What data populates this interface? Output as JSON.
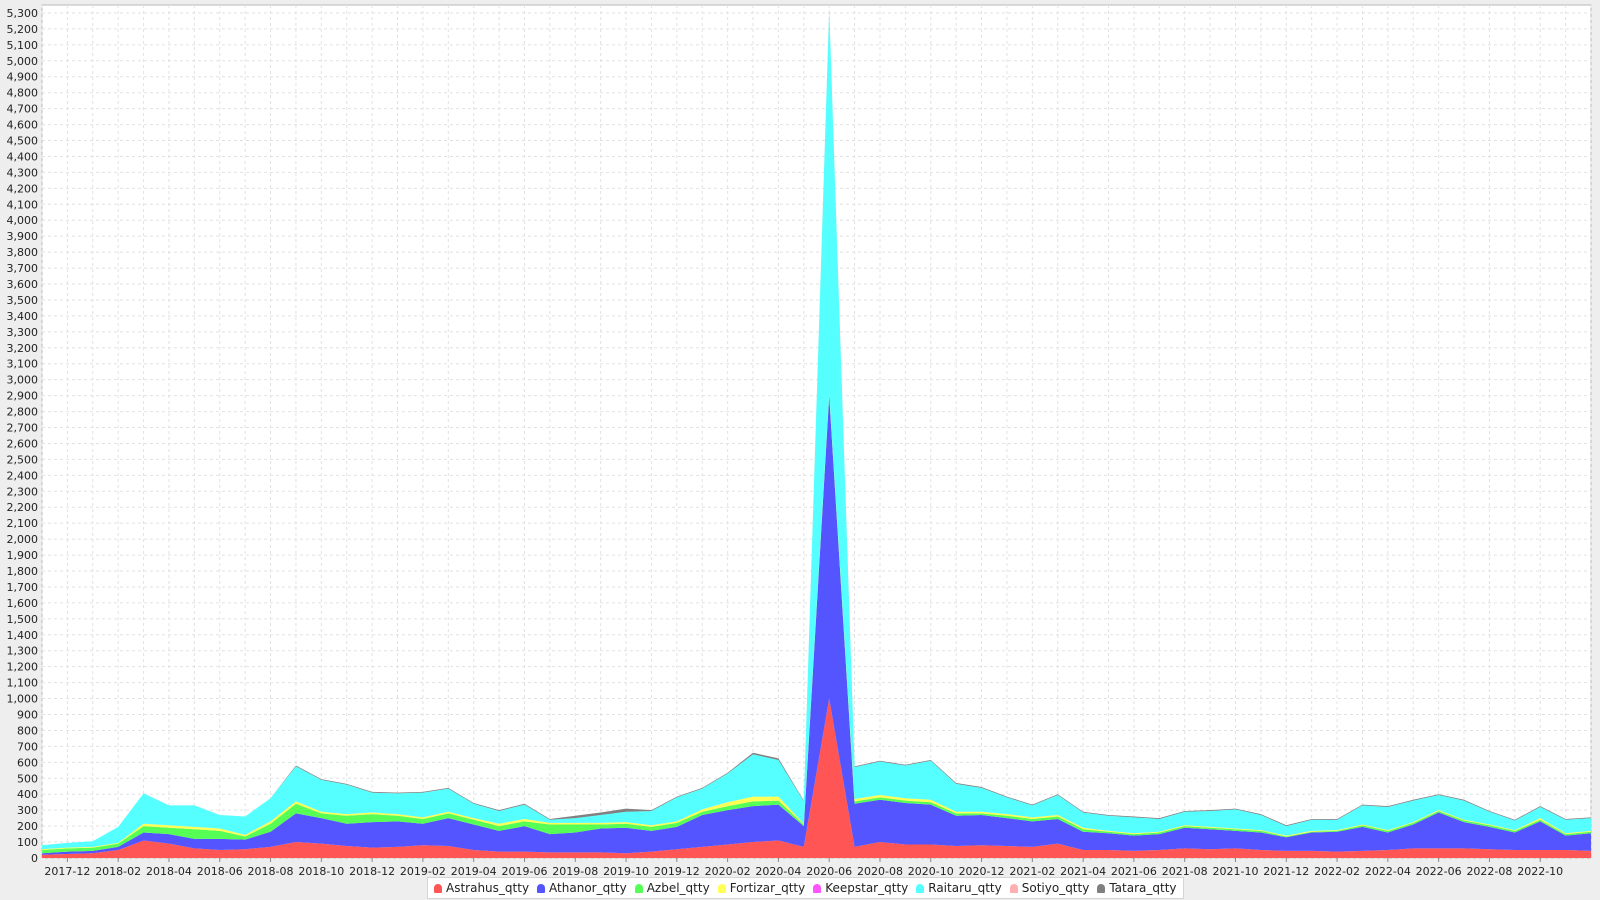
{
  "chart_data": {
    "type": "area",
    "stacked": true,
    "grid": true,
    "legend_position": "bottom",
    "ylim": [
      0,
      5350
    ],
    "y_ticks": [
      0,
      100,
      200,
      300,
      400,
      500,
      600,
      700,
      800,
      900,
      1000,
      1100,
      1200,
      1300,
      1400,
      1500,
      1600,
      1700,
      1800,
      1900,
      2000,
      2100,
      2200,
      2300,
      2400,
      2500,
      2600,
      2700,
      2800,
      2900,
      3000,
      3100,
      3200,
      3300,
      3400,
      3500,
      3600,
      3700,
      3800,
      3900,
      4000,
      4100,
      4200,
      4300,
      4400,
      4500,
      4600,
      4700,
      4800,
      4900,
      5000,
      5100,
      5200,
      5300
    ],
    "y_tick_labels": [
      "0",
      "100",
      "200",
      "300",
      "400",
      "500",
      "600",
      "700",
      "800",
      "900",
      "1,000",
      "1,100",
      "1,200",
      "1,300",
      "1,400",
      "1,500",
      "1,600",
      "1,700",
      "1,800",
      "1,900",
      "2,000",
      "2,100",
      "2,200",
      "2,300",
      "2,400",
      "2,500",
      "2,600",
      "2,700",
      "2,800",
      "2,900",
      "3,000",
      "3,100",
      "3,200",
      "3,300",
      "3,400",
      "3,500",
      "3,600",
      "3,700",
      "3,800",
      "3,900",
      "4,000",
      "4,100",
      "4,200",
      "4,300",
      "4,400",
      "4,500",
      "4,600",
      "4,700",
      "4,800",
      "4,900",
      "5,000",
      "5,100",
      "5,200",
      "5,300"
    ],
    "x": [
      "2017-11",
      "2017-12",
      "2018-01",
      "2018-02",
      "2018-03",
      "2018-04",
      "2018-05",
      "2018-06",
      "2018-07",
      "2018-08",
      "2018-09",
      "2018-10",
      "2018-11",
      "2018-12",
      "2019-01",
      "2019-02",
      "2019-03",
      "2019-04",
      "2019-05",
      "2019-06",
      "2019-07",
      "2019-08",
      "2019-09",
      "2019-10",
      "2019-11",
      "2019-12",
      "2020-01",
      "2020-02",
      "2020-03",
      "2020-04",
      "2020-05",
      "2020-06",
      "2020-07",
      "2020-08",
      "2020-09",
      "2020-10",
      "2020-11",
      "2020-12",
      "2021-01",
      "2021-02",
      "2021-03",
      "2021-04",
      "2021-05",
      "2021-06",
      "2021-07",
      "2021-08",
      "2021-09",
      "2021-10",
      "2021-11",
      "2021-12",
      "2022-01",
      "2022-02",
      "2022-03",
      "2022-04",
      "2022-05",
      "2022-06",
      "2022-07",
      "2022-08",
      "2022-09",
      "2022-10",
      "2022-11",
      "2022-12"
    ],
    "x_tick_labels": [
      "2017-12",
      "2018-02",
      "2018-04",
      "2018-06",
      "2018-08",
      "2018-10",
      "2018-12",
      "2019-02",
      "2019-04",
      "2019-06",
      "2019-08",
      "2019-10",
      "2019-12",
      "2020-02",
      "2020-04",
      "2020-06",
      "2020-08",
      "2020-10",
      "2020-12",
      "2021-02",
      "2021-04",
      "2021-06",
      "2021-08",
      "2021-10",
      "2021-12",
      "2022-02",
      "2022-04",
      "2022-06",
      "2022-08",
      "2022-10"
    ],
    "series": [
      {
        "name": "Astrahus_qtty",
        "color": "#ff5555",
        "values": [
          20,
          25,
          30,
          50,
          110,
          90,
          60,
          50,
          55,
          70,
          100,
          90,
          75,
          65,
          70,
          80,
          75,
          50,
          40,
          40,
          35,
          35,
          35,
          30,
          40,
          55,
          70,
          85,
          100,
          110,
          70,
          1000,
          70,
          100,
          85,
          85,
          75,
          80,
          75,
          70,
          90,
          50,
          50,
          45,
          50,
          60,
          55,
          60,
          50,
          45,
          45,
          40,
          45,
          50,
          60,
          60,
          60,
          55,
          50,
          50,
          50,
          45
        ]
      },
      {
        "name": "Athanor_qtty",
        "color": "#5555ff",
        "values": [
          10,
          15,
          15,
          20,
          50,
          60,
          60,
          70,
          60,
          95,
          180,
          160,
          140,
          160,
          160,
          135,
          175,
          160,
          130,
          160,
          115,
          125,
          150,
          160,
          130,
          140,
          200,
          215,
          225,
          225,
          130,
          1900,
          270,
          265,
          260,
          250,
          190,
          190,
          175,
          160,
          155,
          115,
          105,
          95,
          100,
          130,
          125,
          110,
          110,
          85,
          115,
          125,
          150,
          110,
          150,
          225,
          165,
          140,
          110,
          180,
          90,
          110
        ]
      },
      {
        "name": "Azbel_qtty",
        "color": "#55ff55",
        "values": [
          20,
          20,
          20,
          20,
          40,
          40,
          60,
          50,
          20,
          50,
          60,
          30,
          50,
          50,
          35,
          30,
          30,
          30,
          30,
          30,
          60,
          50,
          25,
          25,
          25,
          25,
          20,
          25,
          30,
          25,
          10,
          10,
          15,
          15,
          15,
          15,
          15,
          10,
          15,
          15,
          15,
          15,
          10,
          10,
          10,
          10,
          10,
          10,
          10,
          5,
          5,
          5,
          10,
          10,
          10,
          10,
          10,
          10,
          10,
          10,
          10,
          10
        ]
      },
      {
        "name": "Fortizar_qtty",
        "color": "#ffff55",
        "values": [
          5,
          5,
          5,
          5,
          15,
          15,
          15,
          15,
          10,
          15,
          15,
          10,
          10,
          10,
          10,
          10,
          10,
          10,
          15,
          15,
          10,
          10,
          10,
          10,
          10,
          10,
          15,
          25,
          30,
          25,
          5,
          10,
          15,
          15,
          15,
          15,
          10,
          10,
          10,
          10,
          10,
          10,
          5,
          5,
          5,
          5,
          5,
          5,
          5,
          5,
          5,
          5,
          5,
          5,
          5,
          5,
          5,
          5,
          5,
          10,
          5,
          5
        ]
      },
      {
        "name": "Keepstar_qtty",
        "color": "#ff55ff",
        "values": [
          0,
          0,
          0,
          0,
          0,
          0,
          0,
          0,
          0,
          0,
          0,
          0,
          0,
          0,
          0,
          0,
          0,
          0,
          0,
          0,
          0,
          0,
          0,
          0,
          0,
          0,
          0,
          0,
          0,
          0,
          0,
          0,
          0,
          0,
          0,
          0,
          0,
          0,
          0,
          0,
          0,
          0,
          0,
          0,
          0,
          0,
          0,
          0,
          0,
          0,
          0,
          0,
          0,
          0,
          0,
          0,
          0,
          0,
          0,
          0,
          0,
          0
        ]
      },
      {
        "name": "Raitaru_qtty",
        "color": "#55ffff",
        "values": [
          25,
          30,
          35,
          100,
          190,
          125,
          135,
          85,
          115,
          145,
          220,
          200,
          185,
          125,
          130,
          155,
          145,
          90,
          80,
          90,
          20,
          30,
          50,
          65,
          90,
          150,
          130,
          180,
          265,
          230,
          140,
          2400,
          200,
          210,
          205,
          245,
          175,
          150,
          105,
          75,
          125,
          95,
          95,
          100,
          80,
          85,
          100,
          120,
          95,
          60,
          70,
          65,
          120,
          145,
          135,
          95,
          120,
          80,
          60,
          70,
          85,
          80
        ]
      },
      {
        "name": "Sotiyo_qtty",
        "color": "#ffafaf",
        "values": [
          0,
          0,
          0,
          0,
          0,
          0,
          0,
          0,
          0,
          0,
          0,
          0,
          0,
          0,
          0,
          0,
          0,
          0,
          0,
          0,
          0,
          0,
          0,
          0,
          0,
          0,
          0,
          0,
          0,
          0,
          0,
          0,
          0,
          0,
          0,
          0,
          0,
          0,
          0,
          0,
          0,
          0,
          0,
          0,
          0,
          0,
          0,
          0,
          0,
          0,
          0,
          0,
          0,
          0,
          0,
          0,
          0,
          0,
          0,
          0,
          0,
          0
        ]
      },
      {
        "name": "Tatara_qtty",
        "color": "#808080",
        "values": [
          0,
          0,
          0,
          0,
          0,
          0,
          0,
          0,
          0,
          0,
          5,
          5,
          5,
          5,
          5,
          5,
          5,
          5,
          5,
          5,
          5,
          15,
          15,
          20,
          5,
          5,
          5,
          5,
          10,
          10,
          5,
          5,
          5,
          5,
          5,
          5,
          5,
          5,
          5,
          5,
          5,
          5,
          5,
          5,
          5,
          5,
          5,
          5,
          5,
          5,
          5,
          5,
          5,
          5,
          5,
          5,
          5,
          5,
          5,
          5,
          5,
          5
        ]
      }
    ]
  }
}
